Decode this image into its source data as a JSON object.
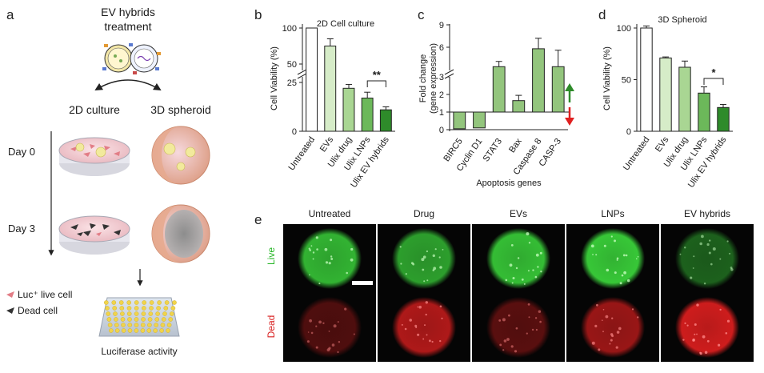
{
  "panel_a": {
    "letter": "a",
    "title_line1": "EV hybrids",
    "title_line2": "treatment",
    "col_2d": "2D culture",
    "col_3d": "3D spheroid",
    "day0": "Day 0",
    "day3": "Day 3",
    "legend_live": "Luc⁺ live cell",
    "legend_dead": "Dead cell",
    "assay": "Luciferase activity"
  },
  "panel_b": {
    "letter": "b"
  },
  "panel_c": {
    "letter": "c"
  },
  "panel_d": {
    "letter": "d"
  },
  "panel_e": {
    "letter": "e",
    "columns": [
      "Untreated",
      "Drug",
      "EVs",
      "LNPs",
      "EV hybrids"
    ],
    "rows": [
      "Live",
      "Dead"
    ],
    "live_brightness": [
      0.85,
      0.75,
      0.9,
      0.95,
      0.45
    ],
    "dead_brightness": [
      0.35,
      0.8,
      0.4,
      0.7,
      0.95
    ]
  },
  "colors": {
    "bar_fills": [
      "#ffffff",
      "#d6ecc8",
      "#a9d693",
      "#6cb85a",
      "#2e8b2a"
    ],
    "chart_c_bar": "#93c57d",
    "up_arrow": "#2e8b2a",
    "down_arrow": "#e02020",
    "live_green": "#3ad13a",
    "dead_red": "#d81e1e"
  },
  "chart_data": [
    {
      "id": "b",
      "type": "bar",
      "title": "2D Cell culture",
      "ylabel": "Cell Viability (%)",
      "categories": [
        "Untreated",
        "EVs",
        "Ulix drug",
        "Ulix LNPs",
        "Ulix EV hybrids"
      ],
      "values": [
        100,
        75,
        22,
        17,
        11
      ],
      "errors": [
        0,
        10,
        2,
        3,
        1.5
      ],
      "yticks": [
        0,
        25,
        50,
        100
      ],
      "axis_break": true,
      "significance": {
        "from": 3,
        "to": 4,
        "label": "**"
      }
    },
    {
      "id": "c",
      "type": "bar",
      "title": "",
      "ylabel_line1": "Fold change",
      "ylabel_line2": "(gene expression)",
      "xlabel": "Apoptosis genes",
      "categories": [
        "BIRC5",
        "Cyclin D1",
        "STAT3",
        "Bax",
        "Caspase 8",
        "CASP-3"
      ],
      "values": [
        0.05,
        0.1,
        3.4,
        1.65,
        5.8,
        3.4
      ],
      "errors": [
        0,
        0,
        0.7,
        0.3,
        1.4,
        2.2
      ],
      "yticks": [
        0,
        1,
        2,
        3,
        6,
        9
      ],
      "axis_break": true,
      "baseline": 1
    },
    {
      "id": "d",
      "type": "bar",
      "title": "3D Spheroid",
      "ylabel": "Cell Viability (%)",
      "categories": [
        "Untreated",
        "EVs",
        "Ulix drug",
        "Ulix LNPs",
        "Ulix EV hybrids"
      ],
      "values": [
        100,
        71,
        62,
        37,
        23
      ],
      "errors": [
        2,
        1,
        6,
        6,
        3
      ],
      "yticks": [
        0,
        50,
        100
      ],
      "significance": {
        "from": 3,
        "to": 4,
        "label": "*"
      }
    }
  ]
}
